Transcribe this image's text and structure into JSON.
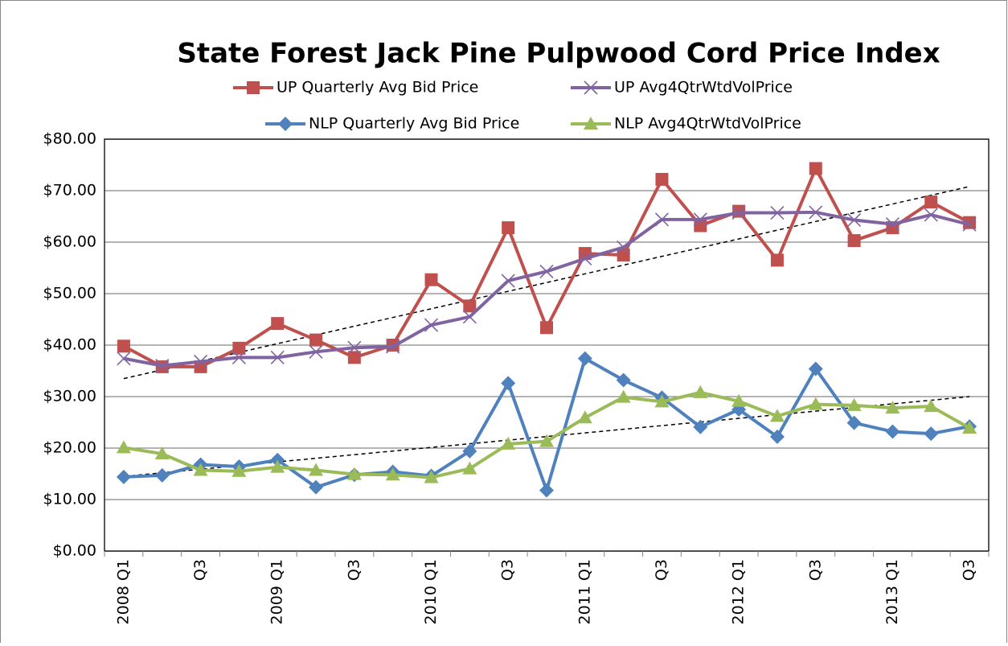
{
  "chart_data": {
    "type": "line",
    "title": "State Forest Jack Pine Pulpwood Cord Price Index",
    "categories": [
      "2008 Q1",
      null,
      "Q3",
      null,
      "2009 Q1",
      null,
      "Q3",
      null,
      "2010 Q1",
      null,
      "Q3",
      null,
      "2011 Q1",
      null,
      "Q3",
      null,
      "2012 Q1",
      null,
      "Q3",
      null,
      "2013 Q1",
      null,
      "Q3"
    ],
    "series": [
      {
        "name": "UP Quarterly Avg Bid Price",
        "color": "#c0504d",
        "marker": "square",
        "values": [
          39.8,
          35.8,
          35.8,
          39.4,
          44.2,
          41.0,
          37.6,
          40.0,
          52.7,
          47.6,
          62.8,
          43.4,
          57.8,
          57.5,
          72.2,
          63.2,
          66.0,
          56.5,
          74.3,
          60.3,
          62.8,
          67.8,
          63.8
        ]
      },
      {
        "name": "UP Avg4QtrWtdVolPrice",
        "color": "#8064a2",
        "marker": "x",
        "values": [
          37.4,
          36.0,
          36.8,
          37.6,
          37.6,
          38.7,
          39.5,
          39.7,
          43.9,
          45.5,
          52.5,
          54.3,
          56.8,
          59.0,
          64.4,
          64.4,
          65.7,
          65.7,
          65.8,
          64.3,
          63.5,
          65.3,
          63.4
        ]
      },
      {
        "name": "NLP Quarterly Avg Bid Price",
        "color": "#4f81bd",
        "marker": "diamond",
        "values": [
          14.4,
          14.7,
          16.8,
          16.4,
          17.7,
          12.4,
          14.8,
          15.4,
          14.6,
          19.4,
          32.6,
          11.8,
          37.4,
          33.2,
          29.8,
          24.1,
          27.5,
          22.2,
          35.4,
          24.9,
          23.2,
          22.8,
          24.2
        ]
      },
      {
        "name": "NLP Avg4QtrWtdVolPrice",
        "color": "#9bbb59",
        "marker": "triangle",
        "values": [
          20.1,
          18.9,
          15.7,
          15.5,
          16.3,
          15.7,
          14.9,
          14.8,
          14.3,
          16.0,
          20.8,
          21.3,
          25.9,
          29.9,
          29.0,
          30.8,
          29.1,
          26.2,
          28.5,
          28.3,
          27.8,
          28.1,
          23.9
        ]
      }
    ],
    "trendlines": [
      {
        "values": [
          33.5,
          70.8
        ]
      },
      {
        "values": [
          14.5,
          30.0
        ]
      }
    ],
    "ylim": [
      0,
      80
    ],
    "yticks": [
      {
        "value": 0,
        "label": "$0.00"
      },
      {
        "value": 10,
        "label": "$10.00"
      },
      {
        "value": 20,
        "label": "$20.00"
      },
      {
        "value": 30,
        "label": "$30.00"
      },
      {
        "value": 40,
        "label": "$40.00"
      },
      {
        "value": 50,
        "label": "$50.00"
      },
      {
        "value": 60,
        "label": "$60.00"
      },
      {
        "value": 70,
        "label": "$70.00"
      },
      {
        "value": 80,
        "label": "$80.00"
      }
    ],
    "grid": true
  }
}
